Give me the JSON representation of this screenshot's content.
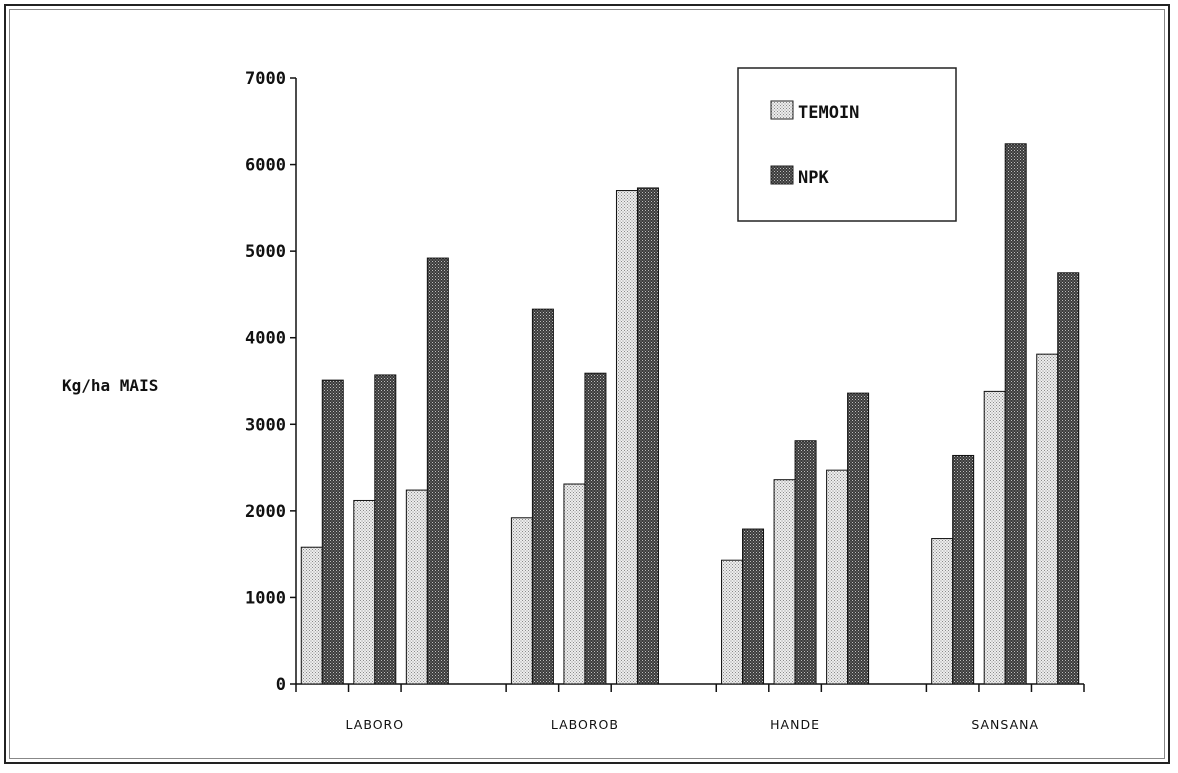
{
  "chart_data": {
    "type": "bar",
    "title": "",
    "xlabel": "",
    "ylabel": "Kg/ha MAIS",
    "ylim": [
      0,
      7000
    ],
    "yticks": [
      0,
      1000,
      2000,
      3000,
      4000,
      5000,
      6000,
      7000
    ],
    "groups": [
      "LABORO",
      "LABOROB",
      "HANDE",
      "SANSANA"
    ],
    "pairs_per_group": 3,
    "series": [
      {
        "name": "TEMOIN",
        "color": "#c8c8c8",
        "values": [
          1580,
          2120,
          2240,
          1920,
          2310,
          5700,
          1430,
          2360,
          2470,
          1680,
          3380,
          3810
        ]
      },
      {
        "name": "NPK",
        "color": "#5a5a5a",
        "values": [
          3510,
          3570,
          4920,
          4330,
          3590,
          5730,
          1790,
          2810,
          3360,
          2640,
          6240,
          4750
        ]
      }
    ],
    "legend": "top-right",
    "grid": false
  }
}
